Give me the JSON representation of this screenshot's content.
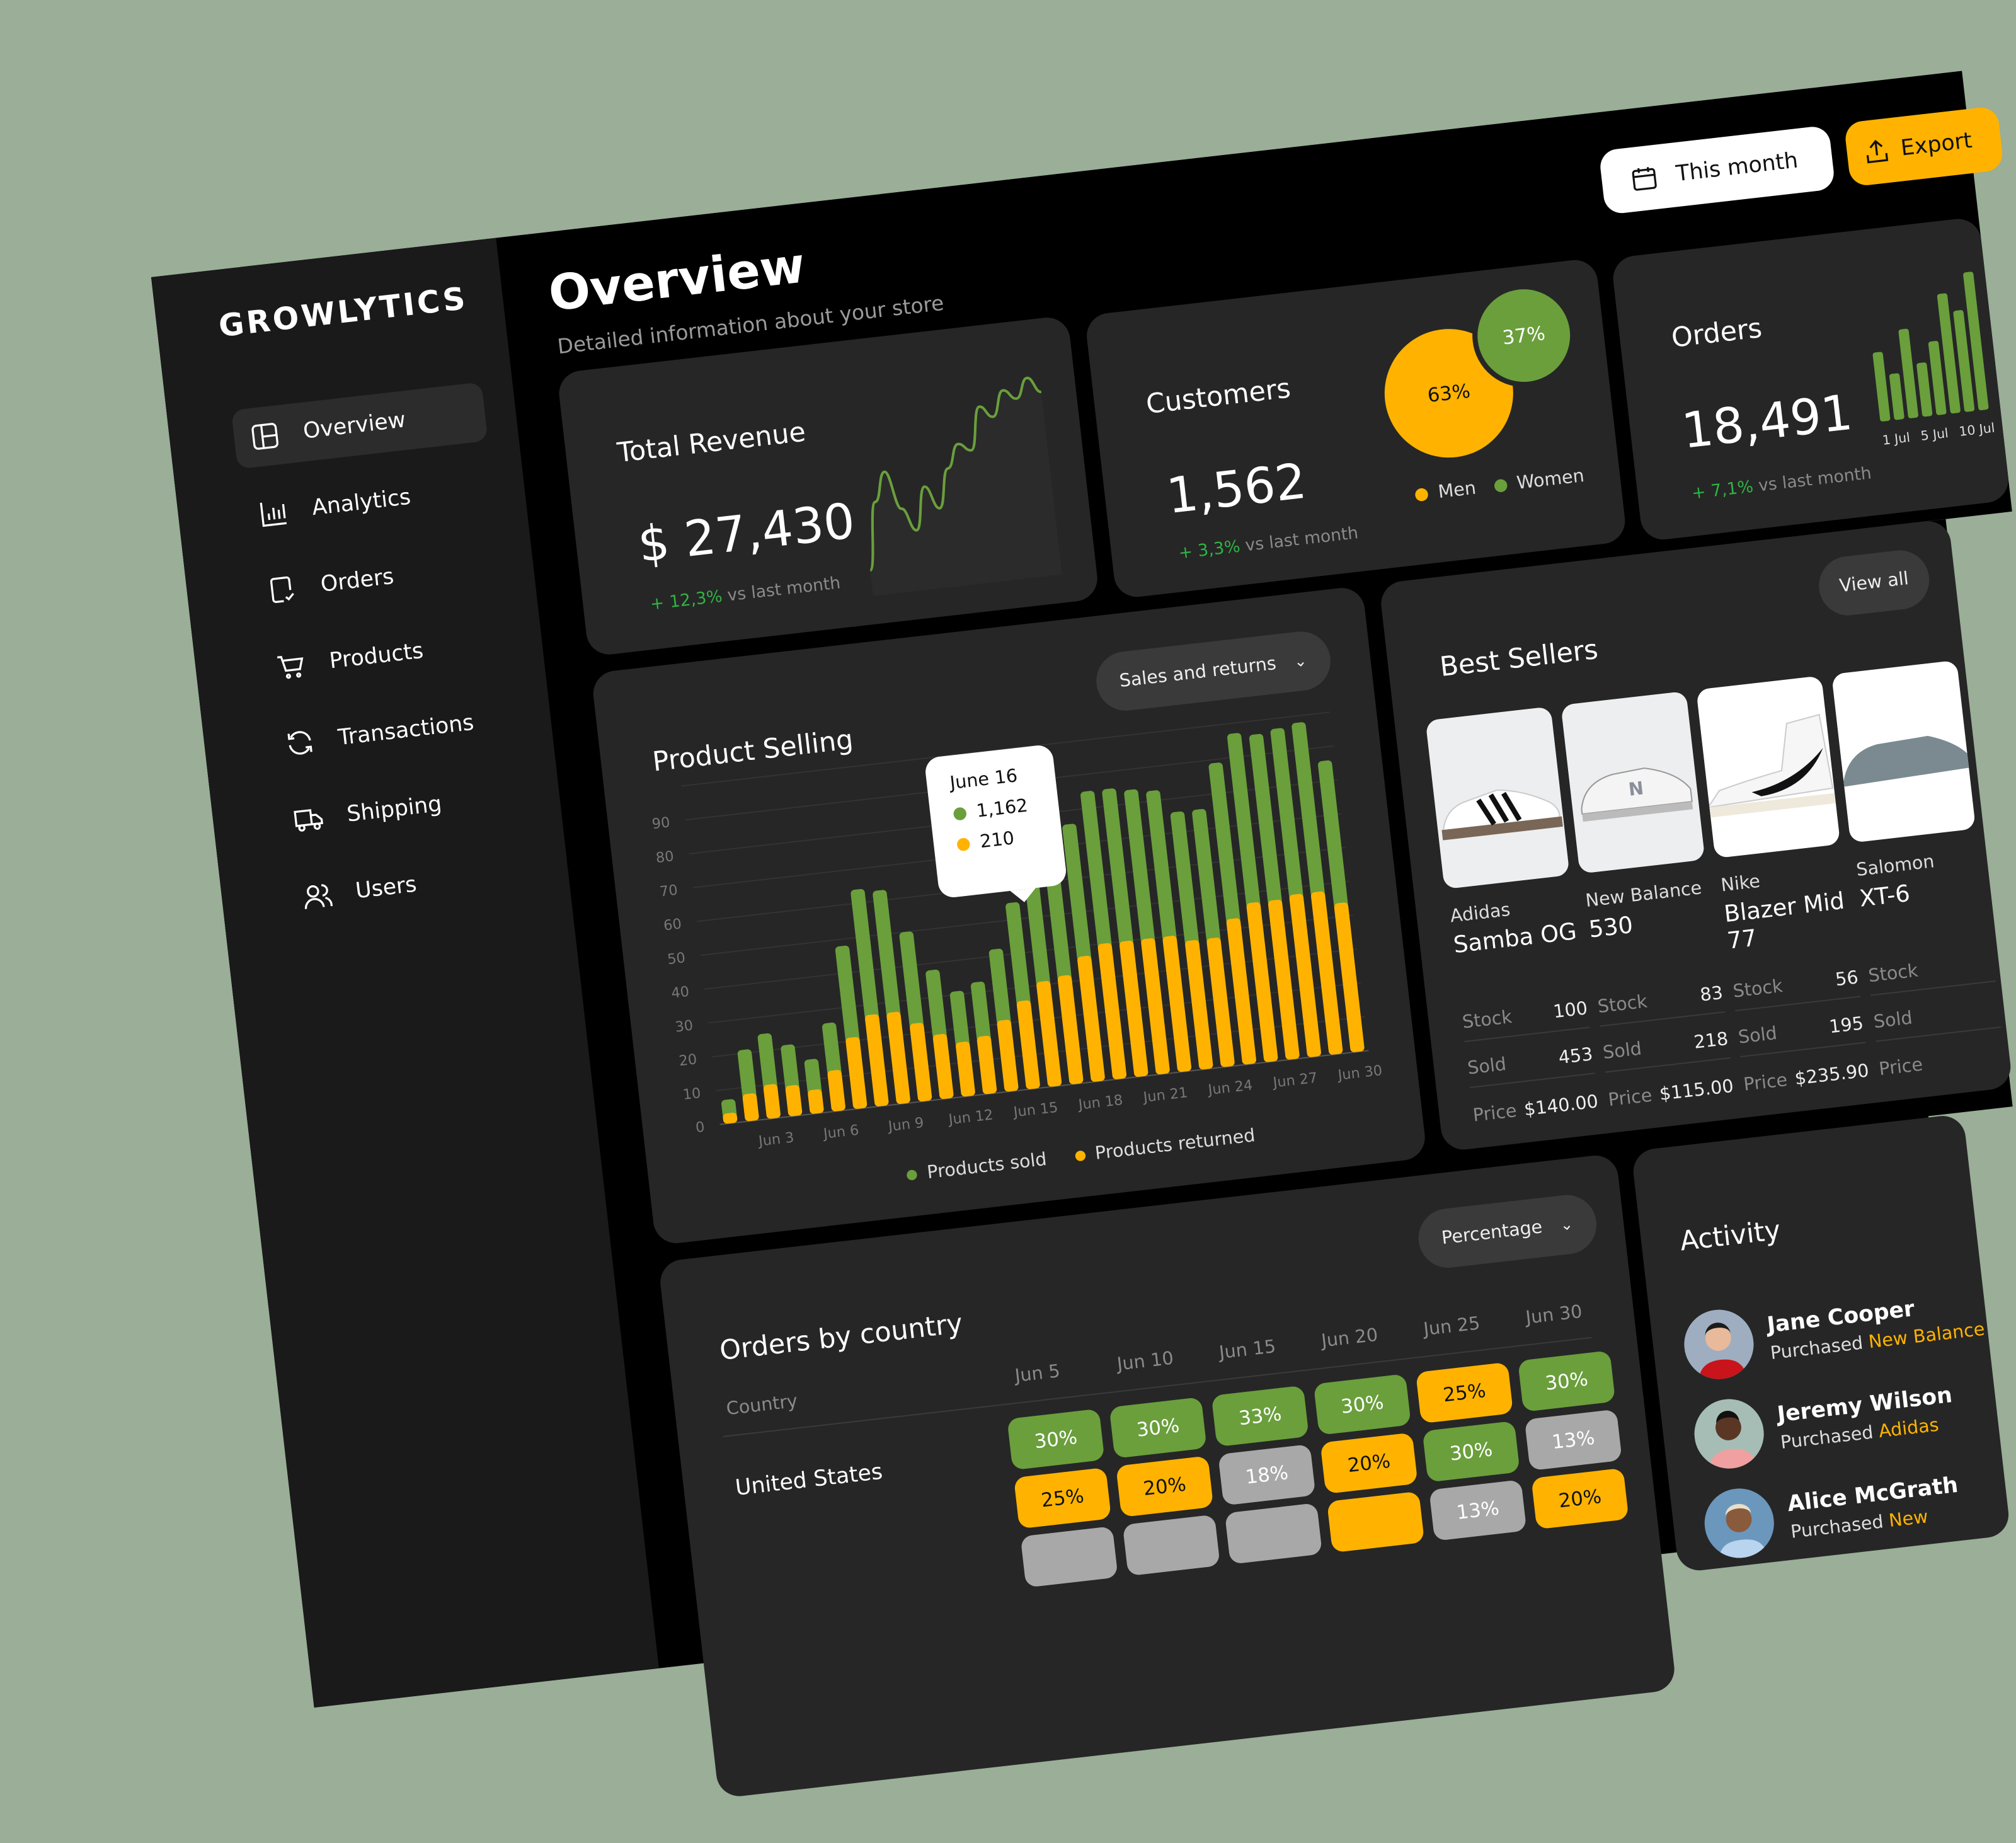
{
  "brand": "GROWLYTICS",
  "colors": {
    "green": "#6a9f3c",
    "yellow": "#ffb300",
    "gray": "#a8a8a8",
    "card": "#262626",
    "growth": "#2fb344",
    "background": "#9aae98"
  },
  "sidebar": {
    "items": [
      {
        "label": "Overview",
        "icon": "layout-icon",
        "active": true
      },
      {
        "label": "Analytics",
        "icon": "bar-chart-icon"
      },
      {
        "label": "Orders",
        "icon": "clipboard-check-icon"
      },
      {
        "label": "Products",
        "icon": "cart-icon"
      },
      {
        "label": "Transactions",
        "icon": "refresh-icon"
      },
      {
        "label": "Shipping",
        "icon": "truck-icon"
      },
      {
        "label": "Users",
        "icon": "users-icon"
      }
    ]
  },
  "header": {
    "title": "Overview",
    "subtitle": "Detailed information about your store",
    "date_button": "This month",
    "export_button": "Export"
  },
  "revenue": {
    "title": "Total Revenue",
    "value": "$ 27,430",
    "change": "+ 12,3%",
    "suffix": "vs last month"
  },
  "customers": {
    "title": "Customers",
    "value": "1,562",
    "change": "+ 3,3%",
    "suffix": "vs last month",
    "men_pct": "63%",
    "women_pct": "37%",
    "legend_men": "Men",
    "legend_women": "Women"
  },
  "orders": {
    "title": "Orders",
    "value": "18,491",
    "change": "+ 7,1%",
    "suffix": "vs last month",
    "x_labels": [
      "1 Jul",
      "5 Jul",
      "10 Jul"
    ]
  },
  "product_selling": {
    "title": "Product Selling",
    "dropdown": "Sales and returns",
    "tooltip": {
      "date": "June 16",
      "sold": "1,162",
      "returned": "210"
    },
    "legend_sold": "Products sold",
    "legend_returned": "Products returned"
  },
  "best_sellers": {
    "title": "Best Sellers",
    "view_button": "View all",
    "labels": {
      "stock": "Stock",
      "sold": "Sold",
      "price": "Price"
    },
    "items": [
      {
        "brand": "Adidas",
        "name": "Samba OG",
        "stock": "100",
        "sold": "453",
        "price": "$140.00"
      },
      {
        "brand": "New Balance",
        "name": "530",
        "stock": "83",
        "sold": "218",
        "price": "$115.00"
      },
      {
        "brand": "Nike",
        "name": "Blazer Mid 77",
        "stock": "56",
        "sold": "195",
        "price": "$235.90"
      },
      {
        "brand": "Salomon",
        "name": "XT-6",
        "stock": "",
        "sold": "",
        "price": ""
      }
    ]
  },
  "orders_by_country": {
    "title": "Orders by country",
    "dropdown": "Percentage",
    "country_header": "Country",
    "columns": [
      "Jun 5",
      "Jun 10",
      "Jun 15",
      "Jun 20",
      "Jun 25",
      "Jun 30"
    ],
    "rows": [
      {
        "country": "United States",
        "cells": [
          {
            "v": "30%",
            "c": "green"
          },
          {
            "v": "30%",
            "c": "green"
          },
          {
            "v": "33%",
            "c": "green"
          },
          {
            "v": "30%",
            "c": "green"
          },
          {
            "v": "25%",
            "c": "yellow"
          },
          {
            "v": "30%",
            "c": "green"
          }
        ]
      },
      {
        "country": "",
        "cells": [
          {
            "v": "25%",
            "c": "yellow"
          },
          {
            "v": "20%",
            "c": "yellow"
          },
          {
            "v": "18%",
            "c": "gray"
          },
          {
            "v": "20%",
            "c": "yellow"
          },
          {
            "v": "30%",
            "c": "green"
          },
          {
            "v": "13%",
            "c": "gray"
          }
        ]
      },
      {
        "country": "",
        "cells": [
          {
            "v": "",
            "c": "gray"
          },
          {
            "v": "",
            "c": "gray"
          },
          {
            "v": "",
            "c": "gray"
          },
          {
            "v": "",
            "c": "yellow"
          },
          {
            "v": "13%",
            "c": "gray"
          },
          {
            "v": "20%",
            "c": "yellow"
          }
        ]
      }
    ]
  },
  "activity": {
    "title": "Activity",
    "action_prefix": "Purchased",
    "items": [
      {
        "name": "Jane Cooper",
        "product": "New Balance"
      },
      {
        "name": "Jeremy Wilson",
        "product": "Adidas"
      },
      {
        "name": "Alice McGrath",
        "product": "New"
      }
    ]
  },
  "chart_data": [
    {
      "type": "bar",
      "stacked": true,
      "title": "Product Selling",
      "categories": [
        "Jun 1",
        "Jun 2",
        "Jun 3",
        "Jun 4",
        "Jun 5",
        "Jun 6",
        "Jun 7",
        "Jun 8",
        "Jun 9",
        "Jun 10",
        "Jun 11",
        "Jun 12",
        "Jun 13",
        "Jun 14",
        "Jun 15",
        "Jun 16",
        "Jun 17",
        "Jun 18",
        "Jun 19",
        "Jun 20",
        "Jun 21",
        "Jun 22",
        "Jun 23",
        "Jun 24",
        "Jun 25",
        "Jun 26",
        "Jun 27",
        "Jun 28",
        "Jun 29",
        "Jun 30"
      ],
      "x_tick_labels": [
        "Jun 3",
        "Jun 6",
        "Jun 9",
        "Jun 12",
        "Jun 15",
        "Jun 18",
        "Jun 21",
        "Jun 24",
        "Jun 27",
        "Jun 30"
      ],
      "y_ticks": [
        0,
        10,
        20,
        30,
        40,
        50,
        60,
        70,
        80,
        90
      ],
      "ylim": [
        0,
        100
      ],
      "grid": true,
      "legend": "bottom",
      "series": [
        {
          "name": "Products returned",
          "color": "#ffb300",
          "values": [
            3,
            8,
            10,
            9,
            7,
            12,
            21,
            27,
            27,
            23,
            19,
            16,
            17,
            21,
            26,
            31,
            32,
            37,
            40,
            40,
            40,
            40,
            38,
            38,
            43,
            47,
            47,
            48,
            48,
            44
          ]
        },
        {
          "name": "Products sold",
          "color": "#6a9f3c",
          "values": [
            4,
            13,
            15,
            12,
            9,
            14,
            27,
            37,
            36,
            27,
            19,
            15,
            16,
            21,
            29,
            31,
            35,
            39,
            45,
            45,
            44,
            43,
            38,
            38,
            46,
            50,
            49,
            49,
            50,
            42
          ]
        }
      ]
    },
    {
      "type": "bar",
      "title": "Orders",
      "x_tick_labels": [
        "1 Jul",
        "5 Jul",
        "10 Jul"
      ],
      "values": [
        45,
        30,
        58,
        35,
        48,
        78,
        66,
        90
      ],
      "color": "#6a9f3c"
    },
    {
      "type": "pie",
      "title": "Customers",
      "slices": [
        {
          "name": "Men",
          "value": 63,
          "color": "#ffb300"
        },
        {
          "name": "Women",
          "value": 37,
          "color": "#6a9f3c"
        }
      ]
    },
    {
      "type": "line",
      "title": "Total Revenue",
      "values": [
        10,
        45,
        60,
        40,
        28,
        50,
        38,
        58,
        70,
        66,
        88,
        82,
        95,
        90,
        100,
        92
      ],
      "color": "#6a9f3c"
    }
  ]
}
